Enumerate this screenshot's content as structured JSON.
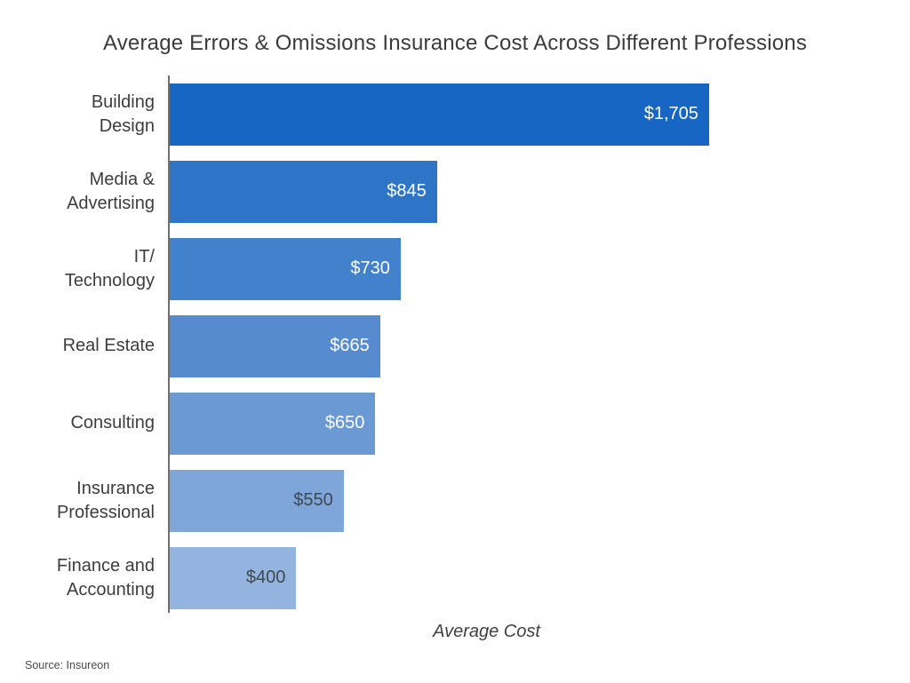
{
  "title": "Average Errors & Omissions Insurance Cost Across Different Professions",
  "source": "Source: Insureon",
  "chart_data": {
    "type": "bar",
    "orientation": "horizontal",
    "title": "Average Errors & Omissions Insurance Cost Across Different Professions",
    "xlabel": "Average Cost",
    "ylabel": "",
    "categories": [
      "Building\nDesign",
      "Media &\nAdvertising",
      "IT/\nTechnology",
      "Real Estate",
      "Consulting",
      "Insurance\nProfessional",
      "Finance and\nAccounting"
    ],
    "values": [
      1705,
      845,
      730,
      665,
      650,
      550,
      400
    ],
    "value_labels": [
      "$1,705",
      "$845",
      "$730",
      "$665",
      "$650",
      "$550",
      "$400"
    ],
    "xlim": [
      0,
      1705
    ],
    "grid": false,
    "legend": false,
    "source": "Source: Insureon",
    "style": {
      "background": "#ffffff",
      "axis_line_color": "#6f6f6f",
      "title_color": "#3b3b3b",
      "category_label_color": "#3d3d3d",
      "bar_colors": [
        "#1766C3",
        "#2F75C7",
        "#4281CB",
        "#568CCF",
        "#6B99D3",
        "#7FA6D8",
        "#93B4DE"
      ],
      "value_label_colors": [
        "#FFFFFF",
        "#FFFFFF",
        "#FFFFFF",
        "#FFFFFF",
        "#FFFFFF",
        "#3E4850",
        "#3E4850"
      ]
    }
  }
}
